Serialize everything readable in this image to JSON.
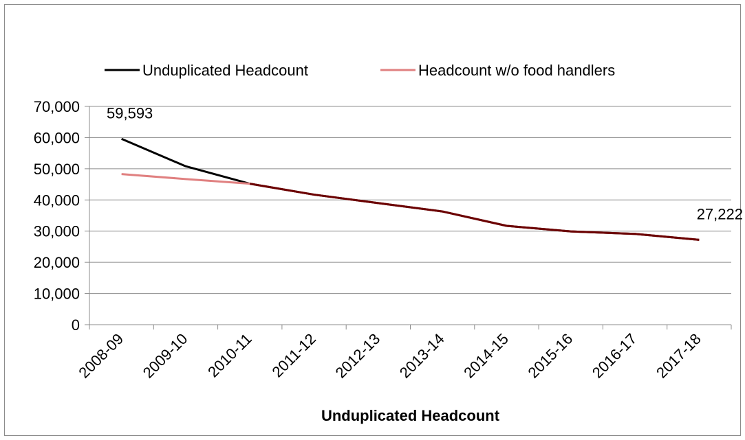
{
  "chart_data": {
    "type": "line",
    "title": "",
    "xlabel": "Unduplicated  Headcount",
    "ylabel": "",
    "categories": [
      "2008-09",
      "2009-10",
      "2010-11",
      "2011-12",
      "2012-13",
      "2013-14",
      "2014-15",
      "2015-16",
      "2016-17",
      "2017-18"
    ],
    "ylim": [
      0,
      70000
    ],
    "yticks": [
      0,
      10000,
      20000,
      30000,
      40000,
      50000,
      60000,
      70000
    ],
    "ytick_labels": [
      "0",
      "10,000",
      "20,000",
      "30,000",
      "40,000",
      "50,000",
      "60,000",
      "70,000"
    ],
    "grid": true,
    "legend_position": "top",
    "series": [
      {
        "name": "Unduplicated Headcount",
        "color": "#000000",
        "values": [
          59593,
          50800,
          45200,
          41700,
          39000,
          36300,
          31700,
          29900,
          29100,
          27222
        ]
      },
      {
        "name": "Headcount w/o food handlers",
        "color": "#e08080",
        "values": [
          48300,
          46700,
          45200,
          41700,
          39000,
          36300,
          31700,
          29900,
          29100,
          27222
        ]
      }
    ],
    "overlap_color": "#6b0000",
    "annotations": [
      {
        "series": 0,
        "index": 0,
        "text": "59,593"
      },
      {
        "series": 0,
        "index": 9,
        "text": "27,222"
      }
    ]
  }
}
